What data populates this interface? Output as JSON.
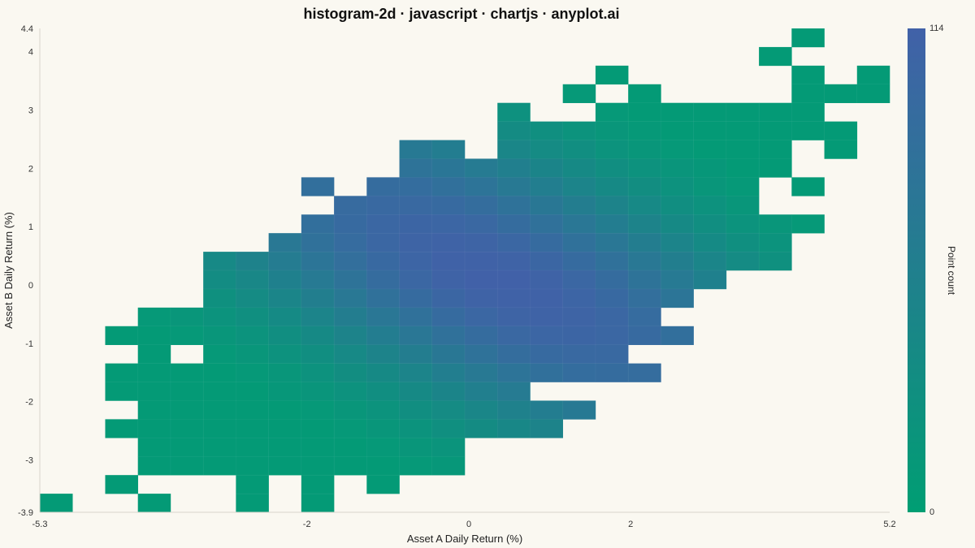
{
  "chart_data": {
    "type": "heatmap",
    "title": "histogram-2d · javascript · chartjs · anyplot.ai",
    "xlabel": "Asset A Daily Return (%)",
    "ylabel": "Asset B Daily Return (%)",
    "xlim": [
      -5.3,
      5.2
    ],
    "ylim": [
      -3.9,
      4.4
    ],
    "x_ticks": [
      "-5.3",
      "-2",
      "0",
      "2",
      "5.2"
    ],
    "y_ticks": [
      "4.4",
      "4",
      "3",
      "2",
      "1",
      "0",
      "-1",
      "-2",
      "-3",
      "-3.9"
    ],
    "bins_x": 26,
    "bins_y": 26,
    "colorbar": {
      "label": "Point count",
      "min": "0",
      "max": "114"
    },
    "colors": {
      "low": "#009E73",
      "high": "#4161A8",
      "background": "#FAF8F1"
    },
    "rows_from_top": [
      "..............................................................................................................................................................................................L",
      "......................................................................................................................................................................................................................L",
      "......................................................................................................................................................................................................................L",
      "............................................................................................................................................................................................",
      "...........................................................................................................................................................................................................................................",
      "...........................................................................................................................................................................................................................................",
      "..................................................................................................................................................................................................................................................................................................",
      ".................................................................................................................................................................................................................................................................................................."
    ]
  }
}
